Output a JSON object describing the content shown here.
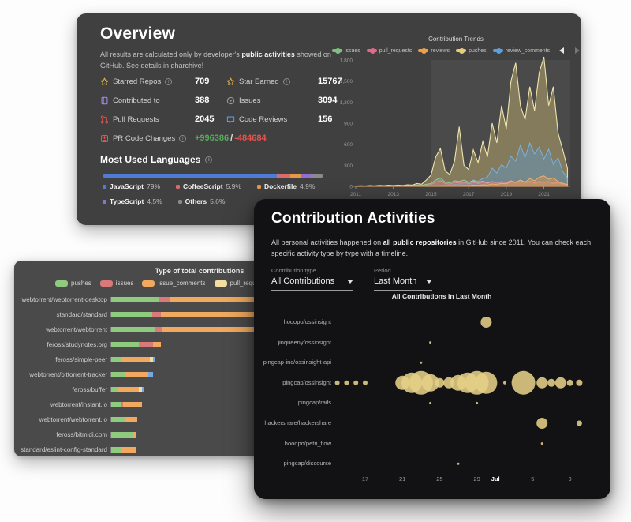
{
  "overview": {
    "title": "Overview",
    "desc_pre": "All results are calculated only by developer's ",
    "desc_bold": "public activities",
    "desc_post": " showed on GitHub. See details in gharchive!",
    "stats": [
      {
        "label": "Starred Repos",
        "value": "709",
        "icon": "star-icon",
        "info": true
      },
      {
        "label": "Star Earned",
        "value": "15767",
        "icon": "star-icon",
        "info": true
      },
      {
        "label": "Contributed to",
        "value": "388",
        "icon": "repo-icon",
        "info": false
      },
      {
        "label": "Issues",
        "value": "3094",
        "icon": "issue-icon",
        "info": false
      },
      {
        "label": "Pull Requests",
        "value": "2045",
        "icon": "pull-request-icon",
        "info": false
      },
      {
        "label": "Code Reviews",
        "value": "156",
        "icon": "code-review-icon",
        "info": false
      },
      {
        "label": "PR Code Changes",
        "additions": "+996386",
        "separator": "/",
        "deletions": "-484684",
        "icon": "diff-icon",
        "info": true
      }
    ],
    "languages": {
      "title": "Most Used Languages",
      "items": [
        {
          "name": "JavaScript",
          "pct": "79%",
          "value": 79,
          "color": "#4e7cd4"
        },
        {
          "name": "CoffeeScript",
          "pct": "5.9%",
          "value": 5.9,
          "color": "#d96b6b"
        },
        {
          "name": "Dockerfile",
          "pct": "4.9%",
          "value": 4.9,
          "color": "#e8964a"
        },
        {
          "name": "TypeScript",
          "pct": "4.5%",
          "value": 4.5,
          "color": "#8d6fd6"
        },
        {
          "name": "Others",
          "pct": "5.6%",
          "value": 5.6,
          "color": "#8a8a8a"
        }
      ]
    }
  },
  "activities": {
    "title": "Contribution Activities",
    "desc_pre": "All personal activities happened on ",
    "desc_bold": "all public repositories",
    "desc_post": " in GitHub since 2011. You can check each specific activity type by type with a timeline.",
    "filters": [
      {
        "label": "Contribution type",
        "value": "All Contributions"
      },
      {
        "label": "Period",
        "value": "Last Month"
      }
    ]
  },
  "chart_data": [
    {
      "id": "contribution-trends",
      "type": "area",
      "title": "Contribution Trends",
      "legend_position": "top",
      "grid": false,
      "ylim": [
        0,
        1800
      ],
      "y_ticks": [
        "1,800",
        "1,500",
        "1,200",
        "900",
        "600",
        "300",
        "0"
      ],
      "x_ticks": [
        2011,
        2013,
        2015,
        2017,
        2019,
        2021
      ],
      "x_range": [
        2011,
        2022.4
      ],
      "brush_from": 2015,
      "x_start": 2011,
      "x_step_years": 0.25,
      "series": [
        {
          "name": "pushes",
          "color": "#e3cd7b",
          "stroke": "#efe4ad",
          "values": [
            4,
            8,
            5,
            10,
            7,
            14,
            9,
            16,
            10,
            18,
            12,
            22,
            18,
            40,
            30,
            90,
            160,
            420,
            540,
            220,
            170,
            360,
            850,
            300,
            240,
            520,
            340,
            640,
            420,
            900,
            620,
            1150,
            820,
            1500,
            1760,
            1150,
            950,
            1420,
            1080,
            1620,
            1860,
            1150,
            1420,
            760,
            520,
            260
          ]
        },
        {
          "name": "review_comments",
          "color": "#5e9fd8",
          "stroke": "#7db4e4",
          "values": [
            0,
            0,
            0,
            0,
            0,
            0,
            0,
            0,
            0,
            0,
            0,
            2,
            2,
            4,
            3,
            6,
            8,
            15,
            12,
            20,
            15,
            30,
            25,
            45,
            50,
            90,
            70,
            110,
            130,
            260,
            190,
            310,
            260,
            430,
            360,
            590,
            410,
            620,
            460,
            560,
            390,
            530,
            310,
            410,
            210,
            120
          ]
        },
        {
          "name": "issues",
          "color": "#7fbf7f",
          "stroke": "#9bd09b",
          "values": [
            2,
            4,
            3,
            5,
            4,
            7,
            5,
            8,
            6,
            10,
            8,
            12,
            10,
            20,
            15,
            30,
            40,
            90,
            120,
            60,
            50,
            80,
            70,
            90,
            60,
            80,
            55,
            75,
            50,
            70,
            45,
            65,
            55,
            80,
            60,
            85,
            50,
            70,
            45,
            60,
            55,
            65,
            40,
            50,
            30,
            20
          ]
        },
        {
          "name": "pull_requests",
          "color": "#e06a8a",
          "stroke": "#ea8aa3",
          "values": [
            1,
            2,
            2,
            3,
            2,
            4,
            3,
            5,
            4,
            6,
            5,
            8,
            6,
            12,
            10,
            18,
            25,
            60,
            80,
            40,
            30,
            55,
            45,
            60,
            35,
            55,
            40,
            60,
            40,
            65,
            45,
            70,
            50,
            80,
            60,
            90,
            55,
            75,
            50,
            70,
            60,
            70,
            45,
            55,
            35,
            20
          ]
        },
        {
          "name": "reviews",
          "color": "#ef9f4a",
          "stroke": "#f5b469",
          "values": [
            0,
            0,
            0,
            0,
            0,
            0,
            0,
            0,
            0,
            0,
            0,
            0,
            0,
            0,
            0,
            2,
            3,
            6,
            5,
            8,
            6,
            10,
            8,
            12,
            10,
            18,
            14,
            22,
            18,
            35,
            25,
            45,
            35,
            70,
            55,
            90,
            60,
            110,
            80,
            130,
            150,
            100,
            120,
            70,
            45,
            25
          ]
        }
      ]
    },
    {
      "id": "contribution-types",
      "type": "bar",
      "orientation": "horizontal-stacked",
      "title": "Type of total contributions",
      "legend_position": "top",
      "categories": [
        "webtorrent/webtorrent-desktop",
        "standard/standard",
        "webtorrent/webtorrent",
        "feross/studynotes.org",
        "feross/simple-peer",
        "webtorrent/bittorrent-tracker",
        "feross/buffer",
        "webtorrent/instant.io",
        "webtorrent/webtorrent.io",
        "feross/bitmidi.com",
        "standard/eslint-config-standard"
      ],
      "series": [
        {
          "name": "pushes",
          "color": "#8fca7f",
          "values": [
            60,
            52,
            55,
            35,
            12,
            18,
            9,
            12,
            18,
            28,
            13
          ]
        },
        {
          "name": "issues",
          "color": "#d97979",
          "values": [
            14,
            11,
            9,
            18,
            0,
            0,
            0,
            3,
            0,
            0,
            0
          ]
        },
        {
          "name": "issue_comments",
          "color": "#f0a95e",
          "values": [
            360,
            368,
            362,
            10,
            37,
            29,
            26,
            24,
            15,
            4,
            18
          ]
        },
        {
          "name": "pull_requests",
          "color": "#f2dda2",
          "values": [
            0,
            0,
            0,
            0,
            4,
            0,
            4,
            0,
            0,
            0,
            0
          ]
        },
        {
          "name": "reviews",
          "color": "#76a9e0",
          "values": [
            0,
            0,
            0,
            0,
            3,
            6,
            3,
            0,
            0,
            0,
            0
          ]
        }
      ]
    },
    {
      "id": "activities-bubble",
      "type": "scatter",
      "title": "All Contributions in Last Month",
      "bubble_color": "#e5cf86",
      "rows": [
        "hooopo/ossinsight",
        "jinqueeny/ossinsight",
        "pingcap-inc/ossinsight-api",
        "pingcap/ossinsight",
        "pingcap/rails",
        "hackershare/hackershare",
        "hooopo/petri_flow",
        "pingcap/discourse"
      ],
      "day0": "Jun 14",
      "x_ticks": [
        {
          "label": "17",
          "d": 3
        },
        {
          "label": "21",
          "d": 7
        },
        {
          "label": "25",
          "d": 11
        },
        {
          "label": "29",
          "d": 15
        },
        {
          "label": "Jul",
          "d": 17,
          "bold": true
        },
        {
          "label": "5",
          "d": 21
        },
        {
          "label": "9",
          "d": 25
        }
      ],
      "points": [
        {
          "row": 0,
          "d": 16,
          "r": 7
        },
        {
          "row": 1,
          "d": 10,
          "r": 1.5
        },
        {
          "row": 2,
          "d": 9,
          "r": 1.5
        },
        {
          "row": 3,
          "d": 0,
          "r": 3
        },
        {
          "row": 3,
          "d": 1,
          "r": 3
        },
        {
          "row": 3,
          "d": 2,
          "r": 3
        },
        {
          "row": 3,
          "d": 3,
          "r": 3
        },
        {
          "row": 3,
          "d": 7,
          "r": 9
        },
        {
          "row": 3,
          "d": 8,
          "r": 13
        },
        {
          "row": 3,
          "d": 9,
          "r": 15
        },
        {
          "row": 3,
          "d": 10,
          "r": 11
        },
        {
          "row": 3,
          "d": 11,
          "r": 6
        },
        {
          "row": 3,
          "d": 12,
          "r": 7
        },
        {
          "row": 3,
          "d": 13,
          "r": 10
        },
        {
          "row": 3,
          "d": 14,
          "r": 13
        },
        {
          "row": 3,
          "d": 15,
          "r": 15
        },
        {
          "row": 3,
          "d": 16,
          "r": 14
        },
        {
          "row": 3,
          "d": 18,
          "r": 2
        },
        {
          "row": 3,
          "d": 20,
          "r": 15
        },
        {
          "row": 3,
          "d": 22,
          "r": 7
        },
        {
          "row": 3,
          "d": 23,
          "r": 5
        },
        {
          "row": 3,
          "d": 24,
          "r": 7
        },
        {
          "row": 3,
          "d": 25,
          "r": 4
        },
        {
          "row": 3,
          "d": 26,
          "r": 4
        },
        {
          "row": 4,
          "d": 10,
          "r": 1.5
        },
        {
          "row": 4,
          "d": 15,
          "r": 1.5
        },
        {
          "row": 5,
          "d": 22,
          "r": 7
        },
        {
          "row": 5,
          "d": 26,
          "r": 3.5
        },
        {
          "row": 6,
          "d": 22,
          "r": 1.5
        },
        {
          "row": 7,
          "d": 13,
          "r": 1.5
        }
      ]
    }
  ]
}
